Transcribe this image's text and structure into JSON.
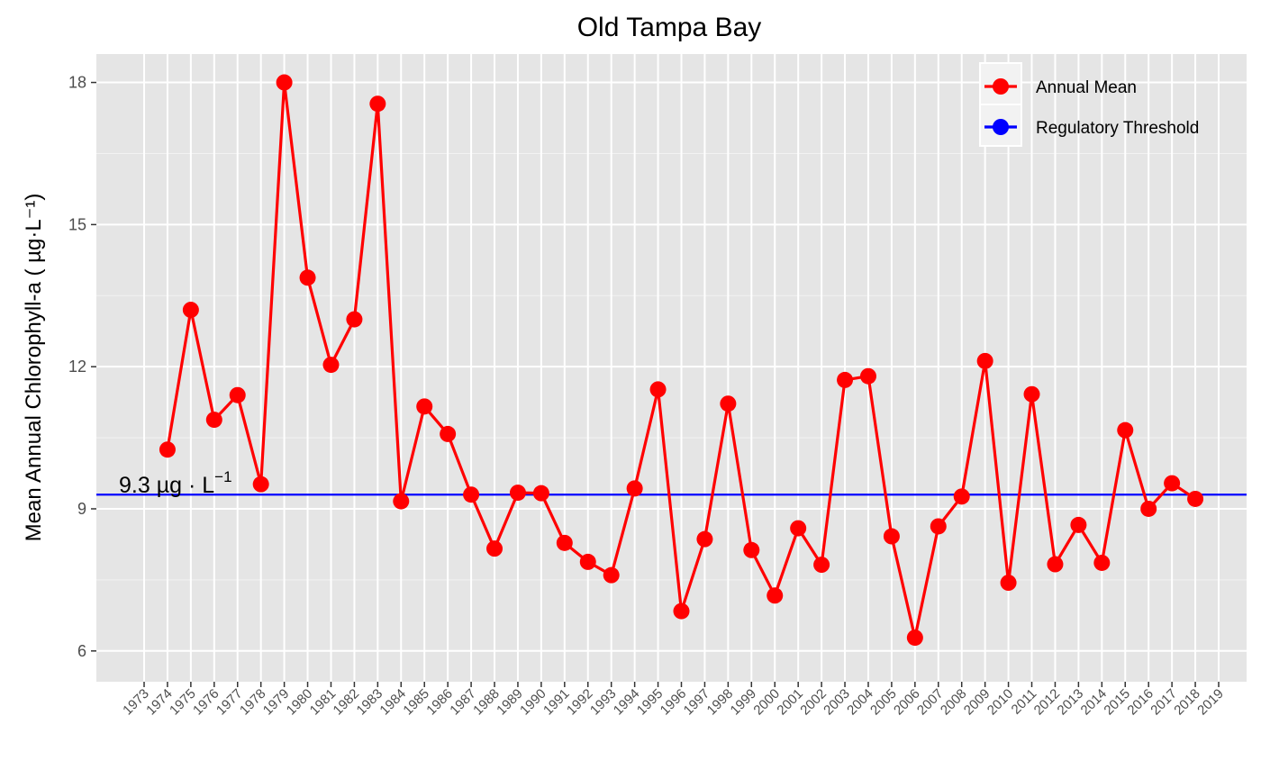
{
  "chart_data": {
    "type": "line",
    "title": "Old Tampa Bay",
    "xlabel": "",
    "ylabel": "Mean Annual Chlorophyll-a ( µg·L⁻¹)",
    "ylim": [
      5.35,
      18.6
    ],
    "yticks": [
      6,
      9,
      12,
      15,
      18
    ],
    "xlim": [
      1973,
      2019
    ],
    "x_tick_labels": [
      "1973",
      "1974",
      "1975",
      "1976",
      "1977",
      "1978",
      "1979",
      "1980",
      "1981",
      "1982",
      "1983",
      "1984",
      "1985",
      "1986",
      "1987",
      "1988",
      "1989",
      "1990",
      "1991",
      "1992",
      "1993",
      "1994",
      "1995",
      "1996",
      "1997",
      "1998",
      "1999",
      "2000",
      "2001",
      "2002",
      "2003",
      "2004",
      "2005",
      "2006",
      "2007",
      "2008",
      "2009",
      "2010",
      "2011",
      "2012",
      "2013",
      "2014",
      "2015",
      "2016",
      "2017",
      "2018",
      "2019"
    ],
    "grid": true,
    "legend_position": "top-right",
    "series": [
      {
        "name": "Annual Mean",
        "color": "#ff0000",
        "x": [
          1974,
          1975,
          1976,
          1977,
          1978,
          1979,
          1980,
          1981,
          1982,
          1983,
          1984,
          1985,
          1986,
          1987,
          1988,
          1989,
          1990,
          1991,
          1992,
          1993,
          1994,
          1995,
          1996,
          1997,
          1998,
          1999,
          2000,
          2001,
          2002,
          2003,
          2004,
          2005,
          2006,
          2007,
          2008,
          2009,
          2010,
          2011,
          2012,
          2013,
          2014,
          2015,
          2016,
          2017,
          2018
        ],
        "values": [
          10.25,
          13.2,
          10.88,
          11.4,
          9.52,
          18.0,
          13.88,
          12.04,
          13.0,
          17.55,
          9.16,
          11.16,
          10.58,
          9.3,
          8.16,
          9.34,
          9.33,
          8.28,
          7.88,
          7.6,
          9.43,
          11.52,
          6.84,
          8.36,
          11.22,
          8.13,
          7.17,
          8.59,
          7.82,
          11.72,
          11.8,
          8.42,
          6.28,
          8.63,
          9.26,
          12.12,
          7.44,
          11.42,
          7.83,
          8.66,
          7.86,
          10.66,
          9.0,
          9.54,
          9.21
        ]
      },
      {
        "name": "Regulatory Threshold",
        "color": "#0000ff",
        "value": 9.3
      }
    ],
    "annotations": [
      {
        "text": "9.3 µg · L",
        "superscript": "−1",
        "x": 1973,
        "y": 9.3
      }
    ]
  }
}
